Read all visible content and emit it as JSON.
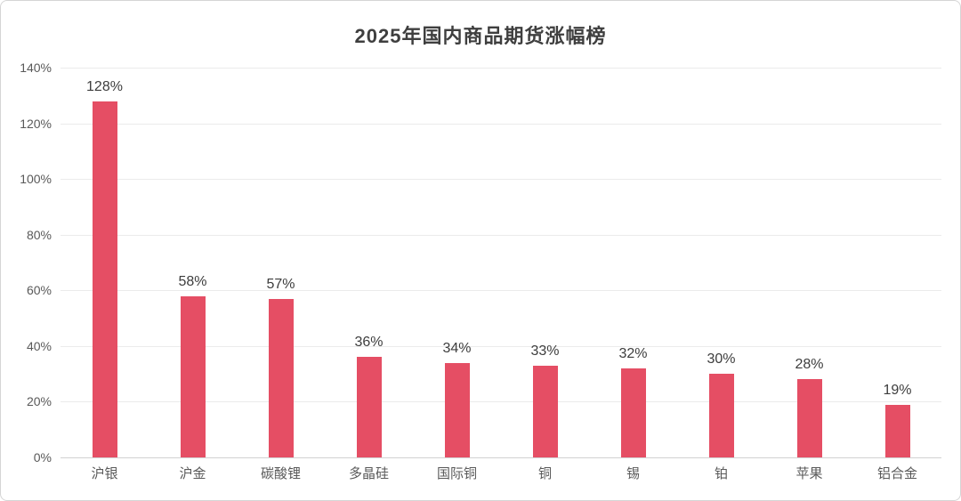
{
  "chart_data": {
    "type": "bar",
    "title": "2025年国内商品期货涨幅榜",
    "categories": [
      "沪银",
      "沪金",
      "碳酸锂",
      "多晶硅",
      "国际铜",
      "铜",
      "锡",
      "铂",
      "苹果",
      "铝合金"
    ],
    "values": [
      128,
      58,
      57,
      36,
      34,
      33,
      32,
      30,
      28,
      19
    ],
    "data_labels": [
      "128%",
      "58%",
      "57%",
      "36%",
      "34%",
      "33%",
      "32%",
      "30%",
      "28%",
      "19%"
    ],
    "xlabel": "",
    "ylabel": "",
    "ylim": [
      0,
      140
    ],
    "ytick_step": 20,
    "ytick_labels": [
      "0%",
      "20%",
      "40%",
      "60%",
      "80%",
      "100%",
      "120%",
      "140%"
    ],
    "grid": true,
    "legend": "none",
    "colors": {
      "bar": "#e54e64",
      "title": "#3f3f3f",
      "axis_label": "#595959",
      "data_label": "#3d3d3d",
      "gridline": "#ebebeb",
      "axis_line": "#d2d2d2",
      "frame_border": "#d5d5d5",
      "background": "#ffffff"
    }
  }
}
